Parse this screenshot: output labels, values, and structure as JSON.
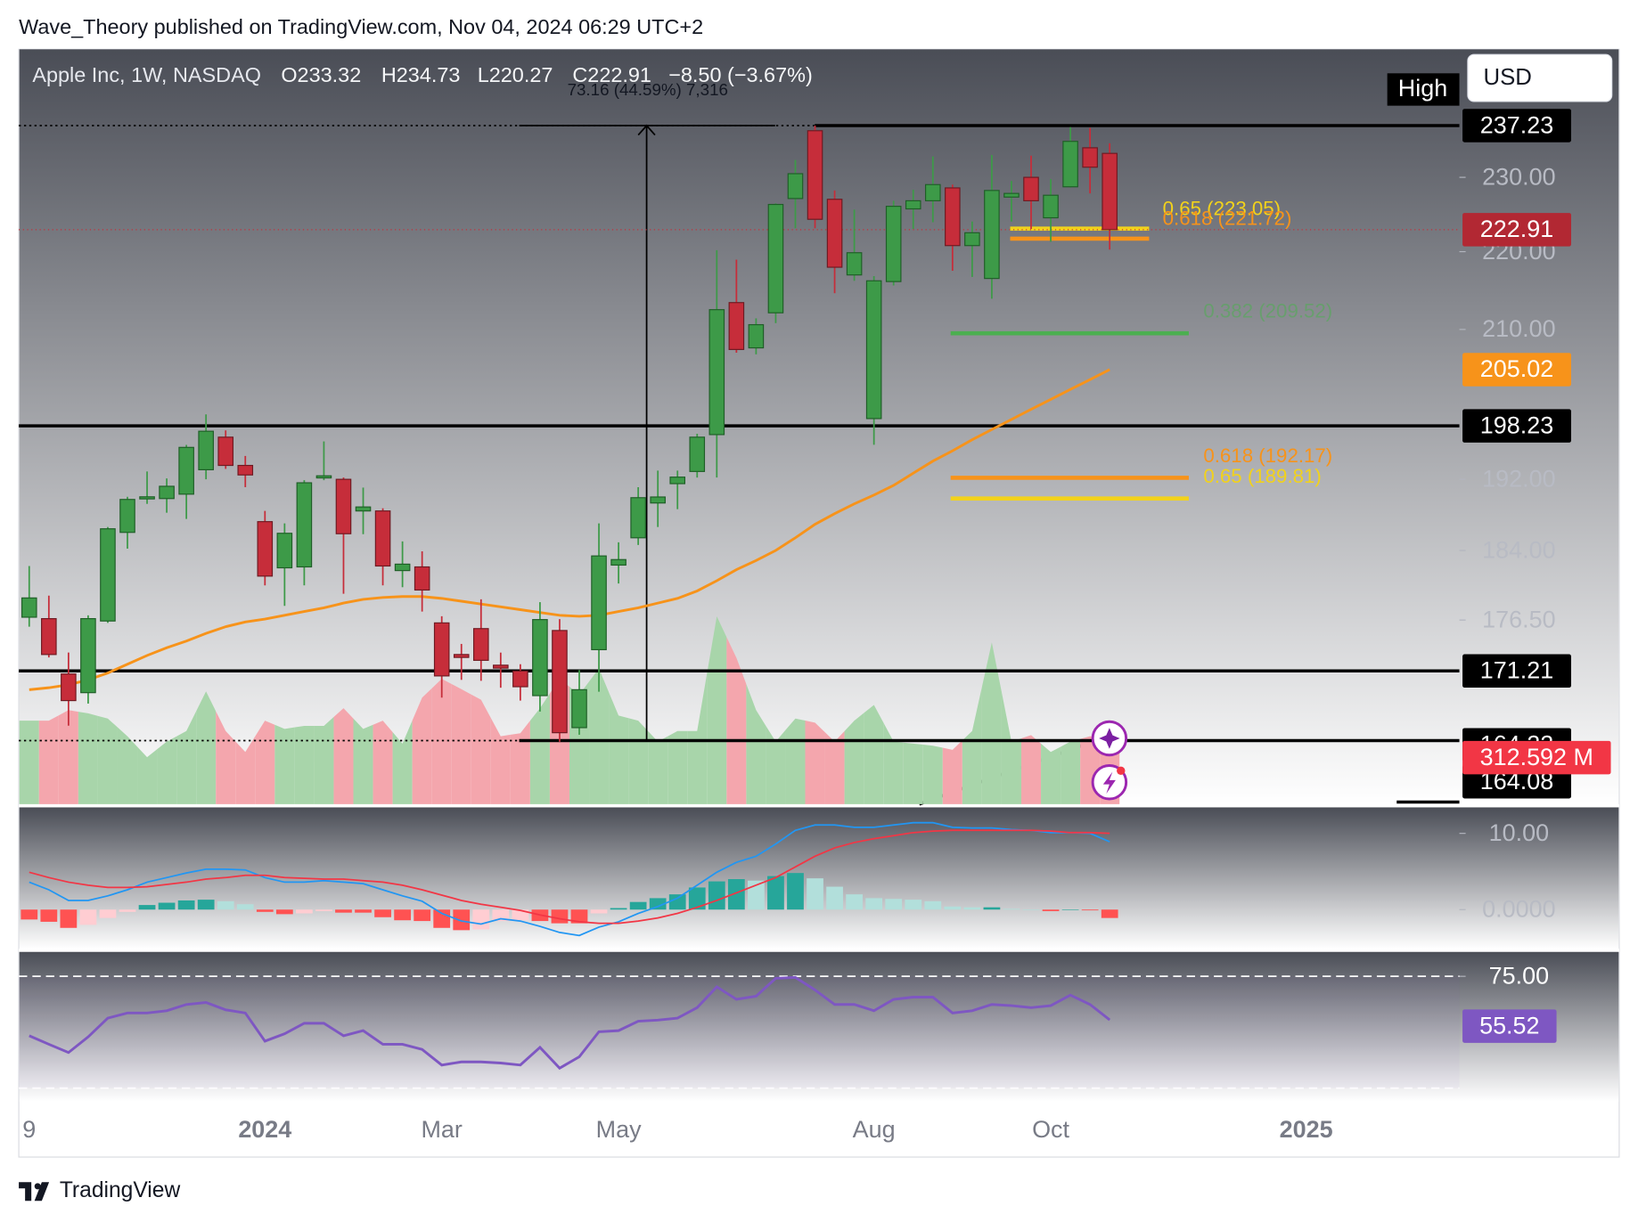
{
  "header": "Wave_Theory published on TradingView.com, Nov 04, 2024 06:29 UTC+2",
  "footer": "TradingView",
  "currency_button": "USD",
  "chart_data": [
    {
      "type": "candlestick",
      "title": "Apple Inc, 1W, NASDAQ",
      "legend_values": [
        "O233.32",
        "H234.73",
        "L220.27",
        "C222.91",
        "−8.50 (−3.67%)"
      ],
      "log_scale": true,
      "categories": [
        null,
        null,
        null,
        null,
        null,
        null,
        null,
        null,
        null,
        null,
        null,
        null,
        null,
        null,
        null,
        null,
        null,
        null,
        null,
        null,
        null,
        null,
        null,
        null,
        null,
        null,
        null,
        null,
        null,
        null,
        null,
        null,
        null,
        null,
        null,
        null,
        null,
        null,
        null,
        null,
        null,
        null,
        null,
        null,
        null,
        null,
        null,
        null,
        null,
        null,
        null,
        null,
        null,
        null,
        null,
        null
      ],
      "xlim": [
        -0.53,
        72.8
      ],
      "xticks": [
        {
          "value": 0,
          "label": "9"
        },
        {
          "value": 12,
          "label": "2024"
        },
        {
          "value": 21,
          "label": "Mar"
        },
        {
          "value": 30,
          "label": "May"
        },
        {
          "value": 43,
          "label": "Aug"
        },
        {
          "value": 52,
          "label": "Oct"
        },
        {
          "value": 65,
          "label": "2025"
        }
      ],
      "ylim": [
        158.1,
        248.3
      ],
      "yticks": [
        {
          "value": 230,
          "label": "230.00"
        },
        {
          "value": 220,
          "label": "220.00"
        },
        {
          "value": 210,
          "label": "210.00"
        },
        {
          "value": 192,
          "label": "192.00"
        },
        {
          "value": 184,
          "label": "184.00"
        },
        {
          "value": 176.5,
          "label": "176.50"
        }
      ],
      "open": [
        176.8,
        176.65,
        170.9,
        169.0,
        176.4,
        186.0,
        189.9,
        189.8,
        190.3,
        193.1,
        196.9,
        193.6,
        187.2,
        182.1,
        182.2,
        192.3,
        192.0,
        188.4,
        188.4,
        181.8,
        182.2,
        176.2,
        172.9,
        175.6,
        171.8,
        171.2,
        168.7,
        175.4,
        165.5,
        173.4,
        182.4,
        185.4,
        189.3,
        191.5,
        192.9,
        197.2,
        213.4,
        207.7,
        212.1,
        227.1,
        236.5,
        227.0,
        216.96,
        199.1,
        216.1,
        225.7,
        226.8,
        228.55,
        220.8,
        216.5,
        227.3,
        230.0,
        224.5,
        228.7,
        234.1,
        233.32
      ],
      "high": [
        182.3,
        179.1,
        173.1,
        177.0,
        186.6,
        190.0,
        192.9,
        192.1,
        195.99,
        199.6,
        197.7,
        194.7,
        188.4,
        187.0,
        191.9,
        196.4,
        192.2,
        191.05,
        188.7,
        185.0,
        183.9,
        176.9,
        174.0,
        178.7,
        173.1,
        171.9,
        178.4,
        176.6,
        171.3,
        187.0,
        184.9,
        191.1,
        193.0,
        193.0,
        197.3,
        220.2,
        218.95,
        211.4,
        226.45,
        232.4,
        237.23,
        228.2,
        225.6,
        216.8,
        226.8,
        228.3,
        232.9,
        229.0,
        224.0,
        233.1,
        229.5,
        233.0,
        229.75,
        237.0,
        236.9,
        234.73
      ],
      "low": [
        175.8,
        172.6,
        165.7,
        167.9,
        176.2,
        184.2,
        189.2,
        188.2,
        187.5,
        192.0,
        193.2,
        191.1,
        180.2,
        178.0,
        180.2,
        191.9,
        179.3,
        185.8,
        180.2,
        180.0,
        177.4,
        168.5,
        170.3,
        170.2,
        169.5,
        168.2,
        167.1,
        164.1,
        164.8,
        169.1,
        180.4,
        184.6,
        186.6,
        188.6,
        192.2,
        192.2,
        207.1,
        206.9,
        210.8,
        223.1,
        223.1,
        214.6,
        216.2,
        196.0,
        215.6,
        223.0,
        223.9,
        217.5,
        216.7,
        213.9,
        224.0,
        223.0,
        221.3,
        228.6,
        227.8,
        220.27
      ],
      "close": [
        178.85,
        172.9,
        168.2,
        176.65,
        186.4,
        189.7,
        190.0,
        191.2,
        195.7,
        197.6,
        193.6,
        192.5,
        181.2,
        185.9,
        191.6,
        192.4,
        185.85,
        188.85,
        182.3,
        182.5,
        179.7,
        170.7,
        172.6,
        172.3,
        171.5,
        169.6,
        176.55,
        165.0,
        169.3,
        183.4,
        183.0,
        189.9,
        189.98,
        192.25,
        196.9,
        212.5,
        207.5,
        210.6,
        226.3,
        230.5,
        224.3,
        217.96,
        219.86,
        216.2,
        226.05,
        226.8,
        229.0,
        220.8,
        222.5,
        228.2,
        227.8,
        226.8,
        227.55,
        235.0,
        231.4,
        222.91
      ],
      "up_color": "#3d9a48",
      "down_color": "#c62d3a",
      "overlays": [
        {
          "type": "line",
          "color": "#f7931a",
          "values": [
            169.3,
            169.5,
            169.8,
            170.3,
            171.0,
            171.9,
            172.8,
            173.6,
            174.3,
            175.1,
            175.8,
            176.3,
            176.6,
            177.0,
            177.4,
            177.8,
            178.3,
            178.7,
            178.9,
            179.0,
            179.0,
            178.8,
            178.5,
            178.2,
            177.9,
            177.6,
            177.3,
            177.0,
            176.9,
            177.0,
            177.4,
            177.8,
            178.3,
            178.8,
            179.6,
            180.7,
            181.9,
            182.9,
            184.0,
            185.4,
            186.9,
            188.1,
            189.2,
            190.2,
            191.3,
            192.7,
            194.1,
            195.3,
            196.6,
            197.8,
            199.0,
            200.2,
            201.4,
            202.6,
            203.8,
            205.02
          ]
        }
      ],
      "volume": {
        "type": "area",
        "axis": "y2",
        "up_color": "#a8d5aa",
        "down_color": "#f4a6ad",
        "values": [
          387,
          387,
          436,
          421,
          397,
          315,
          218,
          290,
          339,
          523,
          339,
          242,
          387,
          349,
          363,
          363,
          445,
          349,
          387,
          281,
          494,
          581,
          533,
          484,
          315,
          329,
          445,
          581,
          508,
          629,
          411,
          387,
          290,
          339,
          339,
          871,
          678,
          436,
          290,
          397,
          378,
          290,
          387,
          460,
          290,
          281,
          271,
          252,
          339,
          750,
          290,
          320,
          242,
          290,
          315,
          312.592
        ],
        "value_labels": [
          null,
          null,
          null,
          null,
          null,
          null,
          null,
          null,
          null,
          null,
          null,
          null,
          null,
          null,
          null,
          null,
          null,
          null,
          null,
          null,
          null,
          null,
          null,
          null,
          null,
          null,
          null,
          null,
          null,
          null,
          null,
          null,
          null,
          null,
          null,
          null,
          null,
          null,
          null,
          null,
          null,
          null,
          null,
          null,
          null,
          null,
          null,
          null,
          null,
          null,
          null,
          null,
          null,
          null,
          null,
          "312.592 M"
        ]
      },
      "y2lim": [
        0,
        3500
      ],
      "high_label": "High",
      "levels": [
        237.23,
        198.23,
        171.21,
        164.22
      ],
      "trend_tag": 164.08,
      "measure": "73.16 (44.59%) 7,316",
      "fib_levels": [
        {
          "label": "0.65 (223.05)",
          "value": 223.05,
          "color": "#f2d21b"
        },
        {
          "label": "0.618 (221.72)",
          "value": 221.72,
          "color": "#f7931a"
        },
        {
          "label": "0.382 (209.52)",
          "value": 209.52,
          "color": "#4caf50"
        },
        {
          "label": "0.618 (192.17)",
          "value": 192.17,
          "color": "#f7931a"
        },
        {
          "label": "0.65 (189.81)",
          "value": 189.81,
          "color": "#f2d21b"
        }
      ]
    },
    {
      "type": "macd",
      "ylim": [
        -5.07,
        13.15
      ],
      "yticks": [
        {
          "value": 10,
          "label": "10.00"
        },
        {
          "value": 0,
          "label": "0.0000"
        }
      ],
      "series": [
        {
          "color": "#2196f3",
          "values": [
            3.6,
            2.6,
            1.2,
            1.2,
            1.8,
            2.6,
            3.6,
            4.2,
            4.8,
            5.3,
            5.3,
            5.2,
            4.2,
            3.6,
            3.6,
            3.8,
            3.6,
            3.4,
            2.6,
            1.8,
            1.1,
            -0.5,
            -1.5,
            -1.9,
            -1.2,
            -1.5,
            -2.2,
            -3.0,
            -3.4,
            -2.3,
            -1.6,
            -0.5,
            0.4,
            1.5,
            3.2,
            4.9,
            6.2,
            7.0,
            8.6,
            10.4,
            11.1,
            11.1,
            10.8,
            10.8,
            11.1,
            11.4,
            11.4,
            10.8,
            10.7,
            10.7,
            10.5,
            10.4,
            10.1,
            10.1,
            10.0,
            8.9
          ]
        },
        {
          "color": "#f23645",
          "values": [
            4.9,
            4.2,
            3.6,
            3.2,
            2.9,
            2.9,
            3.0,
            3.3,
            3.6,
            4.0,
            4.2,
            4.5,
            4.5,
            4.2,
            4.1,
            4.0,
            4.0,
            3.8,
            3.6,
            3.2,
            2.6,
            1.9,
            1.2,
            0.7,
            0.3,
            -0.1,
            -0.7,
            -1.2,
            -1.6,
            -1.8,
            -1.8,
            -1.5,
            -1.1,
            -0.5,
            0.3,
            1.2,
            2.2,
            3.2,
            4.2,
            5.6,
            7.0,
            8.1,
            8.8,
            9.3,
            9.7,
            10.1,
            10.3,
            10.4,
            10.4,
            10.4,
            10.4,
            10.4,
            10.3,
            10.1,
            10.1,
            10.0
          ]
        }
      ],
      "histogram": {
        "values": [
          -1.3,
          -1.6,
          -2.4,
          -2.0,
          -1.1,
          -0.3,
          0.6,
          0.9,
          1.2,
          1.3,
          1.1,
          0.7,
          -0.3,
          -0.6,
          -0.5,
          -0.2,
          -0.4,
          -0.4,
          -1.0,
          -1.4,
          -1.5,
          -2.4,
          -2.7,
          -2.6,
          -1.5,
          -1.4,
          -1.5,
          -1.8,
          -1.8,
          -0.5,
          0.2,
          1.0,
          1.5,
          2.0,
          2.9,
          3.7,
          4.0,
          3.8,
          4.4,
          4.8,
          4.1,
          3.0,
          2.0,
          1.5,
          1.4,
          1.3,
          1.1,
          0.4,
          0.3,
          0.3,
          0.1,
          0.0,
          -0.2,
          0.0,
          -0.1,
          -1.1
        ]
      }
    },
    {
      "type": "line",
      "ylim": [
        20.3,
        85.7
      ],
      "yticks": [
        {
          "value": 75,
          "label": "75.00"
        }
      ],
      "bands": [
        25,
        75
      ],
      "series": [
        {
          "color": "#7e57c2",
          "values": [
            48.4,
            44.6,
            40.9,
            47.9,
            56.3,
            58.6,
            58.6,
            59.6,
            62.4,
            63.3,
            60.0,
            58.6,
            46.0,
            49.3,
            54.0,
            54.0,
            48.4,
            50.7,
            44.6,
            44.6,
            42.3,
            35.3,
            36.7,
            36.7,
            36.2,
            35.3,
            43.2,
            33.9,
            39.0,
            50.2,
            50.7,
            54.9,
            55.4,
            56.3,
            61.0,
            70.3,
            64.7,
            66.1,
            74.1,
            74.5,
            68.9,
            62.4,
            62.4,
            59.6,
            64.7,
            65.7,
            65.7,
            58.6,
            59.6,
            62.4,
            61.9,
            61.0,
            61.9,
            66.6,
            62.4,
            55.52
          ]
        }
      ]
    }
  ]
}
